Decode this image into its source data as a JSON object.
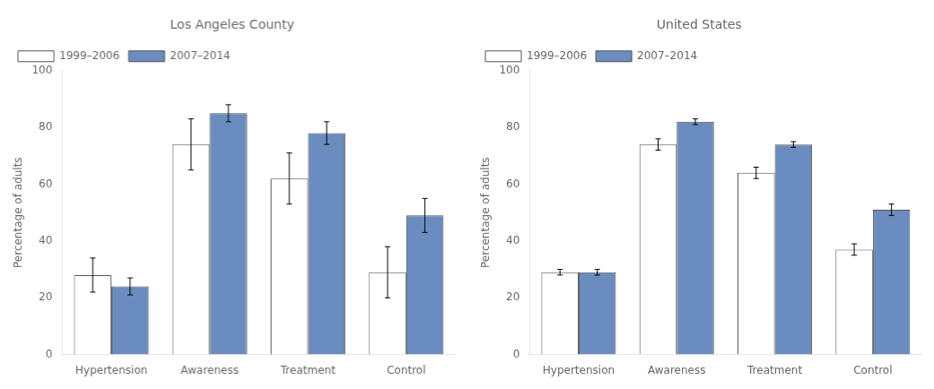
{
  "chart_data": [
    {
      "type": "bar",
      "title": "Los Angeles County",
      "categories": [
        "Hypertension",
        "Awareness",
        "Treatment",
        "Control"
      ],
      "series": [
        {
          "name": "1999–2006",
          "color": "#ffffff",
          "values": [
            28,
            74,
            62,
            29
          ],
          "errors": [
            6,
            9,
            9,
            9
          ]
        },
        {
          "name": "2007–2014",
          "color": "#6b8cbe",
          "values": [
            24,
            85,
            78,
            49
          ],
          "errors": [
            3,
            3,
            4,
            6
          ]
        }
      ],
      "ylabel": "Percentage of adults",
      "ylim": [
        0,
        100
      ],
      "yticks": [
        0,
        20,
        40,
        60,
        80,
        100
      ],
      "grid": false,
      "legend": "upper left"
    },
    {
      "type": "bar",
      "title": "United States",
      "categories": [
        "Hypertension",
        "Awareness",
        "Treatment",
        "Control"
      ],
      "series": [
        {
          "name": "1999–2006",
          "color": "#ffffff",
          "values": [
            29,
            74,
            64,
            37
          ],
          "errors": [
            1,
            2,
            2,
            2
          ]
        },
        {
          "name": "2007–2014",
          "color": "#6b8cbe",
          "values": [
            29,
            82,
            74,
            51
          ],
          "errors": [
            1,
            1,
            1,
            2
          ]
        }
      ],
      "ylabel": "Percentage of adults",
      "ylim": [
        0,
        100
      ],
      "yticks": [
        0,
        20,
        40,
        60,
        80,
        100
      ],
      "grid": false,
      "legend": "upper left"
    }
  ]
}
